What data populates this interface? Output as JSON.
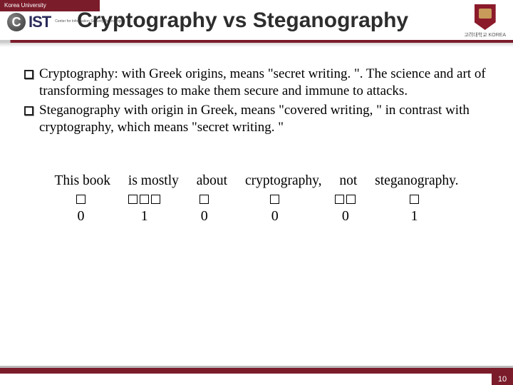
{
  "header": {
    "top_strip": "Korea University",
    "logo_left_c": "C",
    "logo_left_ist": "IST",
    "logo_left_sub": "Center for\nInformation\nSecurity Technologies",
    "title": "Cryptography vs Steganography",
    "uni_name": "고려대학교\nKOREA"
  },
  "bullets": [
    "Cryptography: with Greek origins, means \"secret writing. \". The science and art of transforming messages to make them secure and immune to attacks.",
    "Steganography with origin in Greek, means \"covered writing, \" in contrast with cryptography, which means \"secret writing. \""
  ],
  "figure": {
    "words": [
      "This book",
      "is mostly",
      "about",
      "cryptography,",
      "not",
      "steganography."
    ],
    "groups": [
      {
        "boxes": 1,
        "digit": "0"
      },
      {
        "boxes": 3,
        "digit": "1"
      },
      {
        "boxes": 1,
        "digit": "0"
      },
      {
        "boxes": 1,
        "digit": "0"
      },
      {
        "boxes": 2,
        "digit": "0"
      },
      {
        "boxes": 1,
        "digit": "1"
      }
    ]
  },
  "page_number": "10",
  "colors": {
    "brand": "#7b1c2b",
    "text": "#000000"
  }
}
